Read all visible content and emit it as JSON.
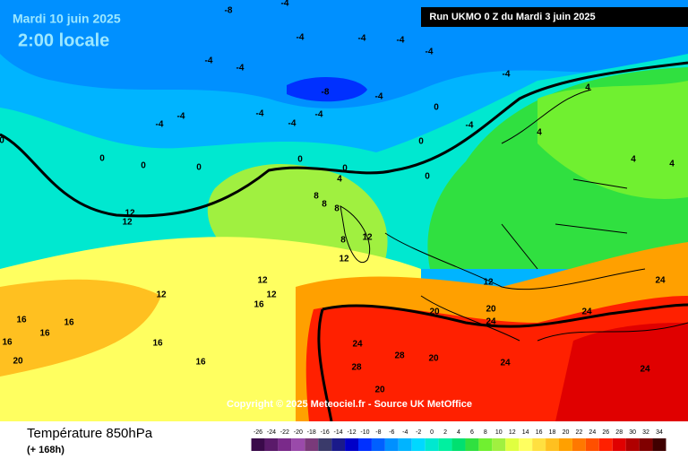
{
  "header": {
    "date": "Mardi 10 juin 2025",
    "time": "2:00 locale",
    "run": "Run UKMO 0 Z du Mardi 3 juin 2025"
  },
  "copyright": "Copyright © 2025 Meteociel.fr - Source UK MetOffice",
  "footer": {
    "title": "Température 850hPa",
    "lead": "(+ 168h)"
  },
  "scale": {
    "values": [
      -26,
      -24,
      -22,
      -20,
      -18,
      -16,
      -14,
      -12,
      -10,
      -8,
      -6,
      -4,
      -2,
      0,
      2,
      4,
      6,
      8,
      10,
      12,
      14,
      16,
      18,
      20,
      22,
      24,
      26,
      28,
      30,
      32,
      34
    ],
    "colors": [
      "#3a0a4a",
      "#5a1a6a",
      "#7a2a8a",
      "#9a4aaa",
      "#7a3a7a",
      "#3a3a6a",
      "#1a1a8a",
      "#0000c8",
      "#0030ff",
      "#0060ff",
      "#0090ff",
      "#00b4ff",
      "#00d8ff",
      "#00e8d0",
      "#00f0a0",
      "#00e070",
      "#30e040",
      "#70f030",
      "#a0f040",
      "#e0ff40",
      "#ffff60",
      "#ffe040",
      "#ffc020",
      "#ffa000",
      "#ff7800",
      "#ff5000",
      "#ff2000",
      "#e00000",
      "#b00000",
      "#800000",
      "#400000"
    ]
  },
  "contour_labels": [
    "-8",
    "-4",
    "-4",
    "-4",
    "-4",
    "-4",
    "-4",
    "-4",
    "-8",
    "-4",
    "-4",
    "-4",
    "-4",
    "-4",
    "-4",
    "-4",
    "-4",
    "0",
    "0",
    "0",
    "0",
    "0",
    "0",
    "0",
    "0",
    "0",
    "4",
    "4",
    "4",
    "4",
    "4",
    "8",
    "8",
    "8",
    "8",
    "12",
    "12",
    "12",
    "12",
    "12",
    "12",
    "12",
    "12",
    "16",
    "16",
    "16",
    "16",
    "16",
    "16",
    "16",
    "20",
    "20",
    "20",
    "24",
    "24",
    "24",
    "24",
    "24",
    "24",
    "28",
    "28",
    "20",
    "20"
  ]
}
